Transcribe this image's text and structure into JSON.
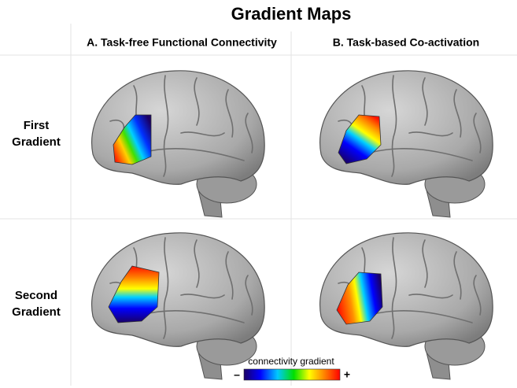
{
  "title": "Gradient Maps",
  "columns": [
    "A. Task-free Functional Connectivity",
    "B. Task-based Co-activation"
  ],
  "rows": [
    [
      "First",
      "Gradient"
    ],
    [
      "Second",
      "Gradient"
    ]
  ],
  "colorbar": {
    "label": "connectivity gradient",
    "min": "–",
    "max": "+"
  }
}
